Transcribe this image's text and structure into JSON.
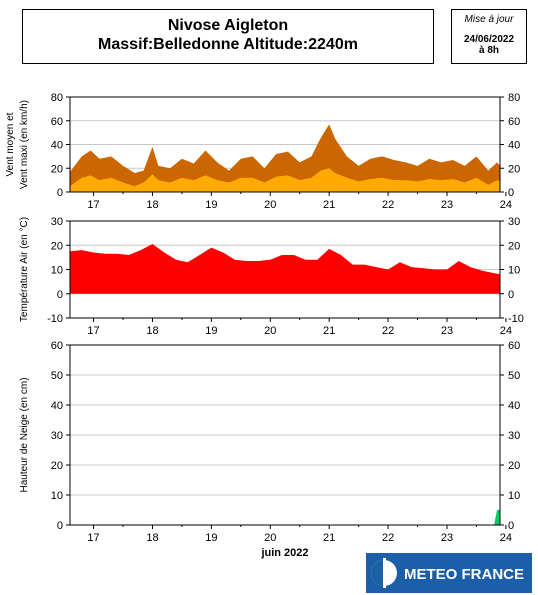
{
  "header": {
    "title_line1": "Nivose Aigleton",
    "title_line2": "Massif:Belledonne Altitude:2240m",
    "update_label": "Mise à jour",
    "update_date": "24/06/2022",
    "update_time": "à 8h"
  },
  "logo": {
    "text": "METEO FRANCE",
    "brand_color": "#1a5fa8"
  },
  "x_axis": {
    "day_labels": [
      "17",
      "18",
      "19",
      "20",
      "21",
      "22",
      "23",
      "24"
    ],
    "month_label": "juin 2022"
  },
  "colors": {
    "wind_max": "#cc6600",
    "wind_mean": "#ffaa00",
    "temperature": "#ff0000",
    "snow": "#00cc66"
  },
  "chart_data": [
    {
      "type": "area",
      "ylabel_line1": "Vent moyen et",
      "ylabel_line2": "Vent maxi (en km/h)",
      "ylim": [
        0,
        80
      ],
      "yticks": [
        0,
        20,
        40,
        60,
        80
      ],
      "x_unit": "days since 16 June 2022 00:00",
      "xlim": [
        0.6,
        7.9
      ],
      "series": [
        {
          "role": "max",
          "x": [
            0.6,
            0.8,
            0.95,
            1.1,
            1.3,
            1.5,
            1.7,
            1.85,
            2.0,
            2.1,
            2.3,
            2.5,
            2.7,
            2.9,
            3.1,
            3.3,
            3.5,
            3.7,
            3.9,
            4.1,
            4.3,
            4.5,
            4.7,
            4.85,
            5.0,
            5.1,
            5.3,
            5.5,
            5.7,
            5.9,
            6.1,
            6.3,
            6.5,
            6.7,
            6.9,
            7.1,
            7.3,
            7.5,
            7.7,
            7.85,
            7.9
          ],
          "values": [
            17,
            30,
            35,
            28,
            30,
            22,
            16,
            18,
            38,
            22,
            20,
            28,
            24,
            35,
            25,
            18,
            28,
            30,
            20,
            32,
            34,
            25,
            30,
            45,
            57,
            45,
            30,
            22,
            28,
            30,
            27,
            25,
            22,
            28,
            25,
            27,
            22,
            30,
            18,
            25,
            22
          ]
        },
        {
          "role": "mean",
          "x": [
            0.6,
            0.8,
            0.95,
            1.1,
            1.3,
            1.5,
            1.7,
            1.85,
            2.0,
            2.1,
            2.3,
            2.5,
            2.7,
            2.9,
            3.1,
            3.3,
            3.5,
            3.7,
            3.9,
            4.1,
            4.3,
            4.5,
            4.7,
            4.85,
            5.0,
            5.1,
            5.3,
            5.5,
            5.7,
            5.9,
            6.1,
            6.3,
            6.5,
            6.7,
            6.9,
            7.1,
            7.3,
            7.5,
            7.7,
            7.85,
            7.9
          ],
          "values": [
            5,
            12,
            14,
            10,
            12,
            8,
            5,
            8,
            15,
            10,
            8,
            12,
            10,
            14,
            10,
            8,
            12,
            12,
            8,
            13,
            14,
            10,
            12,
            18,
            20,
            16,
            12,
            9,
            11,
            12,
            10,
            10,
            9,
            11,
            10,
            11,
            8,
            12,
            6,
            10,
            9
          ]
        }
      ]
    },
    {
      "type": "area",
      "ylabel": "Température Air (en °C)",
      "ylim": [
        -10,
        30
      ],
      "yticks": [
        -10,
        0,
        10,
        20,
        30
      ],
      "series": [
        {
          "name": "Température",
          "x": [
            0.6,
            0.8,
            1.0,
            1.2,
            1.4,
            1.6,
            1.8,
            2.0,
            2.2,
            2.4,
            2.6,
            2.8,
            3.0,
            3.2,
            3.4,
            3.6,
            3.8,
            4.0,
            4.2,
            4.4,
            4.6,
            4.8,
            5.0,
            5.2,
            5.4,
            5.6,
            5.8,
            6.0,
            6.2,
            6.4,
            6.6,
            6.8,
            7.0,
            7.2,
            7.4,
            7.6,
            7.8,
            7.9
          ],
          "values": [
            17.5,
            18,
            17,
            16.5,
            16.5,
            16,
            18,
            20.5,
            17,
            14,
            13,
            16,
            19,
            17,
            14,
            13.5,
            13.5,
            14,
            16,
            16,
            14,
            14,
            18.5,
            16,
            12,
            12,
            11,
            10,
            13,
            11,
            10.5,
            10,
            10,
            13.5,
            11,
            9.5,
            8.5,
            8
          ]
        }
      ]
    },
    {
      "type": "area",
      "ylabel": "Hauteur de Neige (en cm)",
      "ylim": [
        0,
        60
      ],
      "yticks": [
        0,
        10,
        20,
        30,
        40,
        50,
        60
      ],
      "series": [
        {
          "name": "Neige",
          "x": [
            0.6,
            7.8,
            7.85,
            7.9
          ],
          "values": [
            0,
            0,
            5,
            5
          ]
        }
      ]
    }
  ]
}
